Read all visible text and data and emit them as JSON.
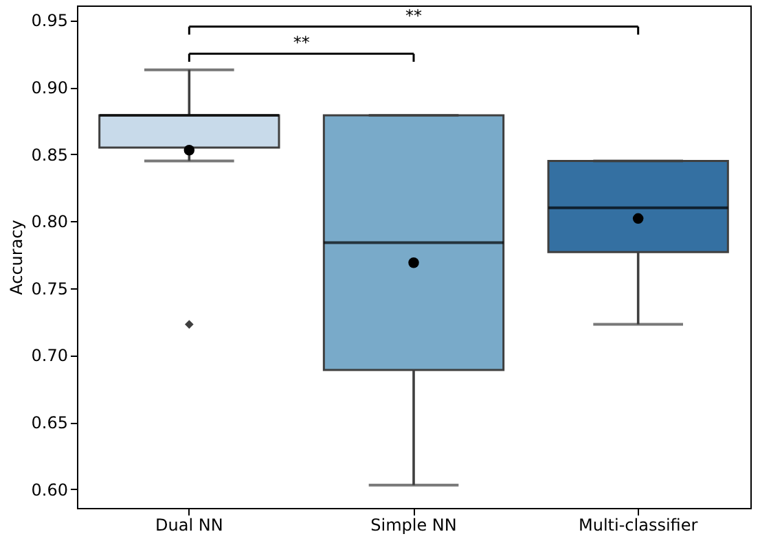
{
  "chart_data": {
    "type": "box",
    "ylabel": "Accuracy",
    "categories": [
      "Dual NN",
      "Simple NN",
      "Multi-classifier"
    ],
    "colors": [
      "#c8daea",
      "#79aac9",
      "#3470a2"
    ],
    "boxes": [
      {
        "low": 0.845,
        "q1": 0.855,
        "median": 0.879,
        "q3": 0.879,
        "high": 0.913,
        "mean": 0.853,
        "outliers": [
          0.723
        ]
      },
      {
        "low": 0.603,
        "q1": 0.689,
        "median": 0.784,
        "q3": 0.879,
        "high": 0.879,
        "mean": 0.769
      },
      {
        "low": 0.723,
        "q1": 0.777,
        "median": 0.81,
        "q3": 0.845,
        "high": 0.845,
        "mean": 0.802
      }
    ],
    "ylim": [
      0.586,
      0.961
    ],
    "yticks": [
      {
        "value": 0.6,
        "label": "0.60"
      },
      {
        "value": 0.65,
        "label": "0.65"
      },
      {
        "value": 0.7,
        "label": "0.70"
      },
      {
        "value": 0.75,
        "label": "0.75"
      },
      {
        "value": 0.8,
        "label": "0.80"
      },
      {
        "value": 0.85,
        "label": "0.85"
      },
      {
        "value": 0.9,
        "label": "0.90"
      },
      {
        "value": 0.95,
        "label": "0.95"
      }
    ],
    "annotations": [
      "**",
      "**"
    ],
    "grid": false
  }
}
